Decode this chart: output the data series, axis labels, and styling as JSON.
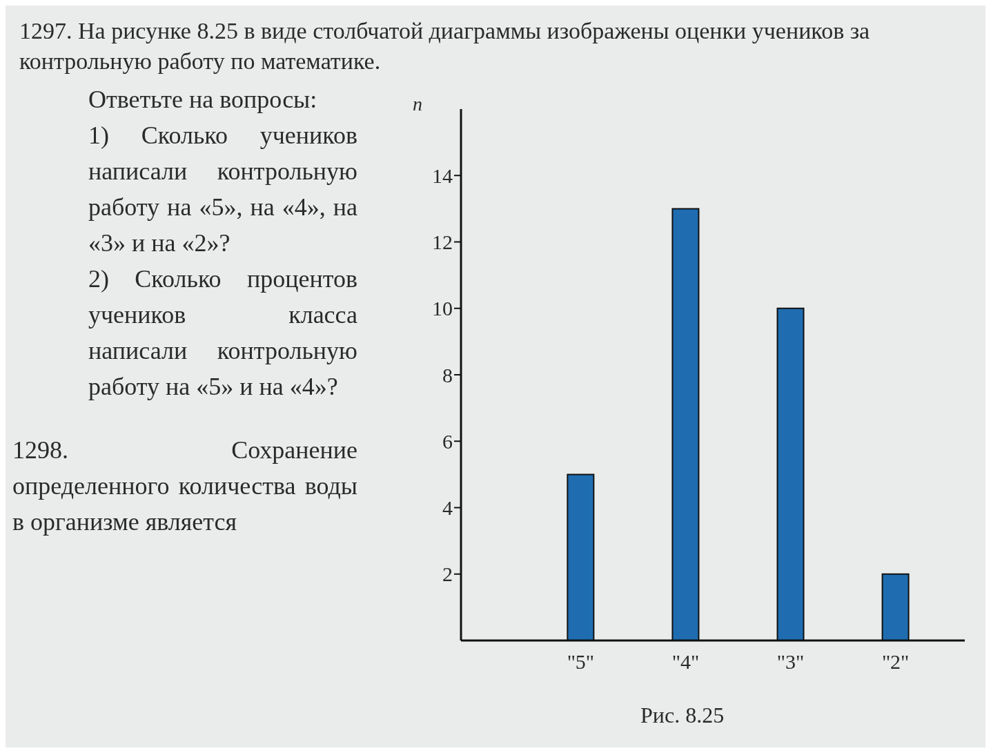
{
  "chart_data": {
    "type": "bar",
    "title": "1297. На рисунке 8.25 в виде столбчатой диаграммы изображены оценки учеников за контрольную работу по математике.",
    "ylabel": "n",
    "categories": [
      "\"5\"",
      "\"4\"",
      "\"3\"",
      "\"2\""
    ],
    "values": [
      5,
      13,
      10,
      2
    ],
    "color": "#1f6db0",
    "ylim": [
      0,
      16
    ],
    "yticks": [
      2,
      4,
      6,
      8,
      10,
      12,
      14
    ],
    "grid": false,
    "annotations": [
      "Ответьте на вопросы:",
      "1) Сколько учеников написали контрольную работу на «5», на «4», на «3» и на «2»?",
      "2) Сколько процентов учеников класса написали контрольную работу на «5» и на «4»?",
      "1298. Сохранение определенного количества воды в организме является",
      "Рис. 8.25"
    ]
  }
}
